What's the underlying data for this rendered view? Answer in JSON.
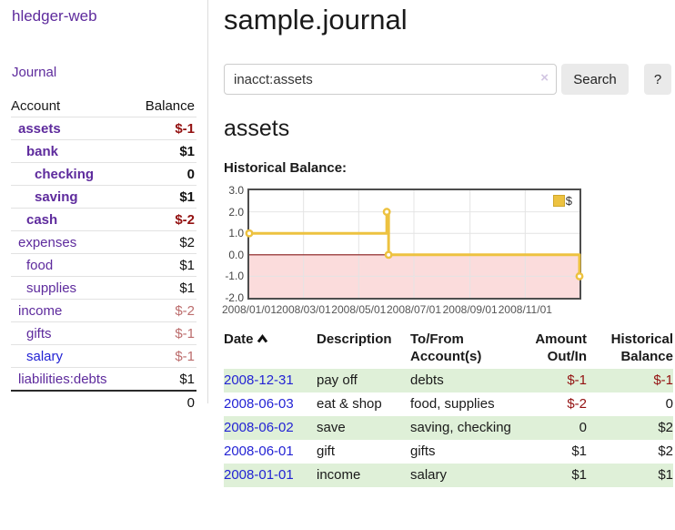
{
  "app": {
    "brand": "hledger-web",
    "nav_journal": "Journal"
  },
  "sidebar": {
    "table_headers": {
      "account": "Account",
      "balance": "Balance"
    },
    "accounts": [
      {
        "name": "assets",
        "indent": 1,
        "bold": true,
        "balance": "$-1",
        "neg": "dark"
      },
      {
        "name": "bank",
        "indent": 2,
        "bold": true,
        "balance": "$1"
      },
      {
        "name": "checking",
        "indent": 3,
        "bold": true,
        "balance": "0"
      },
      {
        "name": "saving",
        "indent": 3,
        "bold": true,
        "balance": "$1"
      },
      {
        "name": "cash",
        "indent": 2,
        "bold": true,
        "balance": "$-2",
        "neg": "dark"
      },
      {
        "name": "expenses",
        "indent": 1,
        "bold": false,
        "balance": "$2"
      },
      {
        "name": "food",
        "indent": 2,
        "bold": false,
        "balance": "$1"
      },
      {
        "name": "supplies",
        "indent": 2,
        "bold": false,
        "balance": "$1"
      },
      {
        "name": "income",
        "indent": 1,
        "bold": false,
        "balance": "$-2",
        "neg": "light"
      },
      {
        "name": "gifts",
        "indent": 2,
        "bold": false,
        "balance": "$-1",
        "neg": "light"
      },
      {
        "name": "salary",
        "indent": 2,
        "bold": false,
        "blue": true,
        "balance": "$-1",
        "neg": "light"
      },
      {
        "name": "liabilities:debts",
        "indent": 1,
        "bold": false,
        "balance": "$1"
      }
    ],
    "total": "0"
  },
  "main": {
    "title": "sample.journal",
    "search": {
      "value": "inacct:assets",
      "clear_icon": "×",
      "button": "Search",
      "help_button": "?"
    },
    "account_heading": "assets",
    "chart_label": "Historical Balance:",
    "table": {
      "headers": {
        "date": "Date",
        "sort_icon": "chevron-up",
        "description": "Description",
        "tofrom": "To/From Account(s)",
        "amount": "Amount Out/In",
        "balance": "Historical Balance"
      },
      "rows": [
        {
          "date": "2008-12-31",
          "description": "pay off",
          "accounts": "debts",
          "amount": "$-1",
          "amount_neg": true,
          "balance": "$-1",
          "balance_neg": true,
          "green": true
        },
        {
          "date": "2008-06-03",
          "description": "eat & shop",
          "accounts": "food, supplies",
          "amount": "$-2",
          "amount_neg": true,
          "balance": "0",
          "balance_neg": false,
          "green": false
        },
        {
          "date": "2008-06-02",
          "description": "save",
          "accounts": "saving, checking",
          "amount": "0",
          "amount_neg": false,
          "balance": "$2",
          "balance_neg": false,
          "green": true
        },
        {
          "date": "2008-06-01",
          "description": "gift",
          "accounts": "gifts",
          "amount": "$1",
          "amount_neg": false,
          "balance": "$2",
          "balance_neg": false,
          "green": false
        },
        {
          "date": "2008-01-01",
          "description": "income",
          "accounts": "salary",
          "amount": "$1",
          "amount_neg": false,
          "balance": "$1",
          "balance_neg": false,
          "green": true
        }
      ]
    }
  },
  "chart_data": {
    "type": "line",
    "step": true,
    "title": "Historical Balance:",
    "legend": [
      {
        "label": "$",
        "color": "#edc240"
      }
    ],
    "series": [
      {
        "name": "$",
        "points": [
          [
            "2008-01-01",
            1
          ],
          [
            "2008-06-01",
            2
          ],
          [
            "2008-06-03",
            0
          ],
          [
            "2008-12-31",
            -1
          ]
        ]
      }
    ],
    "x_range": [
      "2008-01-01",
      "2008-12-31"
    ],
    "y_lim": [
      -2,
      3
    ],
    "y_ticks": [
      "3.0",
      "2.0",
      "1.0",
      "0.0",
      "-1.0",
      "-2.0"
    ],
    "x_ticks": [
      "2008/01/01",
      "2008/03/01",
      "2008/05/01",
      "2008/07/01",
      "2008/09/01",
      "2008/11/01"
    ],
    "grid": true,
    "legend_position": "top-right",
    "colors": {
      "line": "#edc240",
      "negative_fill": "#fbdcdc",
      "zero_line": "#8b1a1a",
      "grid": "#e4e4e4"
    }
  }
}
